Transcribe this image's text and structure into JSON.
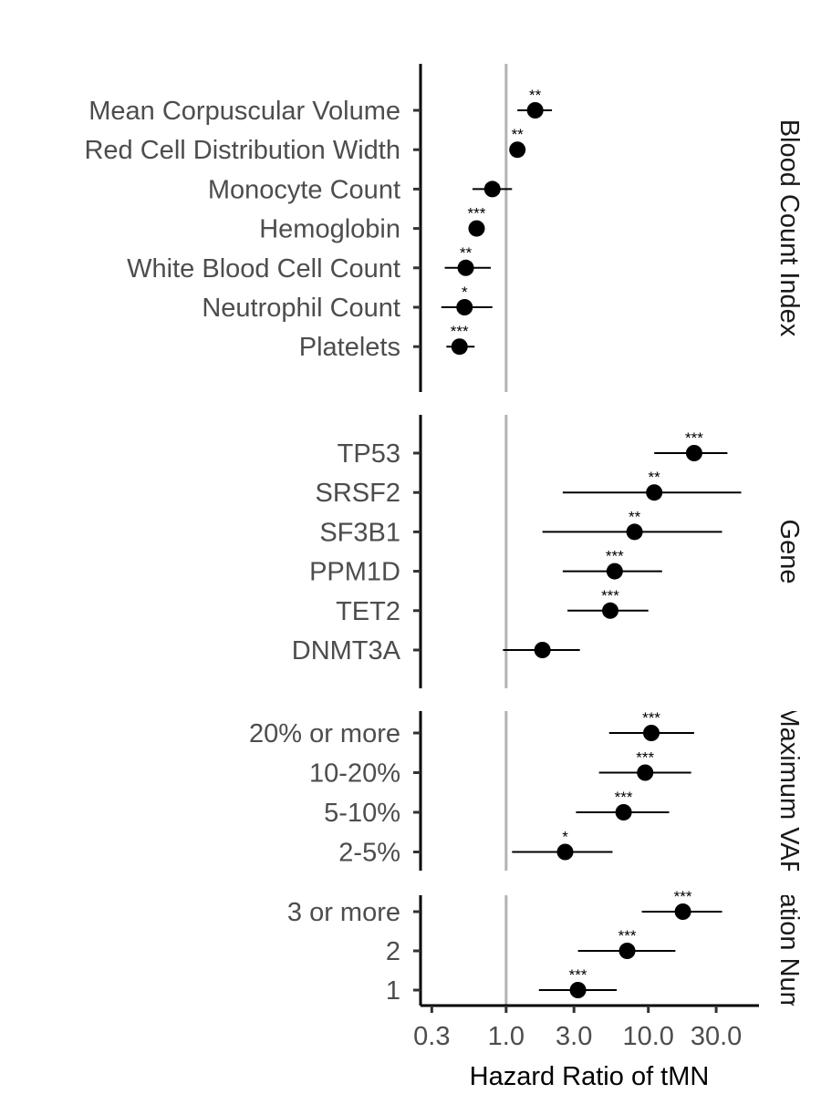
{
  "chart_data": {
    "type": "forest",
    "xlabel": "Hazard Ratio of tMN",
    "x_scale": "log10",
    "xlim": [
      0.25,
      60
    ],
    "x_ticks": [
      0.3,
      1.0,
      3.0,
      10.0,
      30.0
    ],
    "x_tick_labels": [
      "0.3",
      "1.0",
      "3.0",
      "10.0",
      "30.0"
    ],
    "reference_line": 1.0,
    "panels": [
      {
        "strip": "Blood Count Index",
        "rows": [
          {
            "label": "Mean Corpuscular Volume",
            "hr": 1.6,
            "lo": 1.2,
            "hi": 2.1,
            "sig": "**"
          },
          {
            "label": "Red Cell Distribution Width",
            "hr": 1.2,
            "lo": 1.15,
            "hi": 1.25,
            "sig": "**"
          },
          {
            "label": "Monocyte Count",
            "hr": 0.8,
            "lo": 0.58,
            "hi": 1.1,
            "sig": ""
          },
          {
            "label": "Hemoglobin",
            "hr": 0.62,
            "lo": 0.55,
            "hi": 0.7,
            "sig": "***"
          },
          {
            "label": "White Blood Cell Count",
            "hr": 0.52,
            "lo": 0.37,
            "hi": 0.78,
            "sig": "**"
          },
          {
            "label": "Neutrophil Count",
            "hr": 0.51,
            "lo": 0.35,
            "hi": 0.8,
            "sig": "*"
          },
          {
            "label": "Platelets",
            "hr": 0.47,
            "lo": 0.38,
            "hi": 0.6,
            "sig": "***"
          }
        ]
      },
      {
        "strip": "Gene",
        "rows": [
          {
            "label": "TP53",
            "hr": 21,
            "lo": 11,
            "hi": 36,
            "sig": "***"
          },
          {
            "label": "SRSF2",
            "hr": 11,
            "lo": 2.5,
            "hi": 45,
            "sig": "**"
          },
          {
            "label": "SF3B1",
            "hr": 8,
            "lo": 1.8,
            "hi": 33,
            "sig": "**"
          },
          {
            "label": "PPM1D",
            "hr": 5.8,
            "lo": 2.5,
            "hi": 12.5,
            "sig": "***"
          },
          {
            "label": "TET2",
            "hr": 5.4,
            "lo": 2.7,
            "hi": 10,
            "sig": "***"
          },
          {
            "label": "DNMT3A",
            "hr": 1.8,
            "lo": 0.95,
            "hi": 3.3,
            "sig": ""
          }
        ]
      },
      {
        "strip": "Maximum VAF",
        "rows": [
          {
            "label": "20% or more",
            "hr": 10.5,
            "lo": 5.3,
            "hi": 21,
            "sig": "***"
          },
          {
            "label": "10-20%",
            "hr": 9.5,
            "lo": 4.5,
            "hi": 20,
            "sig": "***"
          },
          {
            "label": "5-10%",
            "hr": 6.7,
            "lo": 3.1,
            "hi": 14,
            "sig": "***"
          },
          {
            "label": "2-5%",
            "hr": 2.6,
            "lo": 1.1,
            "hi": 5.6,
            "sig": "*"
          }
        ]
      },
      {
        "strip": "Mutation Number",
        "rows": [
          {
            "label": "3 or more",
            "hr": 17.5,
            "lo": 9.0,
            "hi": 33,
            "sig": "***"
          },
          {
            "label": "2",
            "hr": 7.1,
            "lo": 3.2,
            "hi": 15.5,
            "sig": "***"
          },
          {
            "label": "1",
            "hr": 3.2,
            "lo": 1.7,
            "hi": 6.0,
            "sig": "***"
          }
        ]
      }
    ]
  }
}
